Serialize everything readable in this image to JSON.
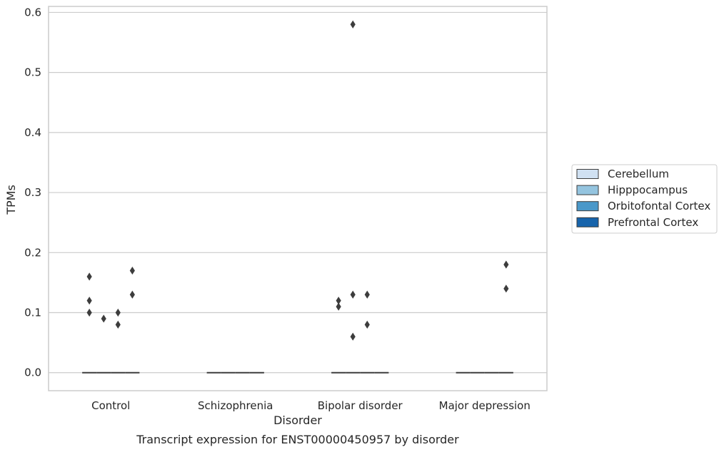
{
  "chart_data": {
    "type": "box",
    "xlabel": "Disorder",
    "ylabel": "TPMs",
    "caption": "Transcript expression for ENST00000450957 by disorder",
    "categories": [
      "Control",
      "Schizophrenia",
      "Bipolar disorder",
      "Major depression"
    ],
    "ylim": [
      -0.03,
      0.61
    ],
    "yticks": [
      "0.0",
      "0.1",
      "0.2",
      "0.3",
      "0.4",
      "0.5",
      "0.6"
    ],
    "grid": "horizontal",
    "legend_position": "right",
    "series": [
      {
        "name": "Cerebellum",
        "color": "#d0e1f2",
        "median": [
          0,
          0,
          0,
          0
        ],
        "outliers": [
          [
            0.1,
            0.12,
            0.16
          ],
          [],
          [
            0.11,
            0.12
          ],
          []
        ]
      },
      {
        "name": "Hipppocampus",
        "color": "#94c4df",
        "median": [
          0,
          0,
          0,
          0
        ],
        "outliers": [
          [
            0.09
          ],
          [],
          [
            0.06,
            0.13,
            0.58
          ],
          []
        ]
      },
      {
        "name": "Orbitofontal Cortex",
        "color": "#4a98c9",
        "median": [
          0,
          0,
          0,
          0
        ],
        "outliers": [
          [
            0.08,
            0.1
          ],
          [],
          [
            0.08,
            0.13
          ],
          []
        ]
      },
      {
        "name": "Prefrontal Cortex",
        "color": "#1764ab",
        "median": [
          0,
          0,
          0,
          0
        ],
        "outliers": [
          [
            0.13,
            0.17
          ],
          [],
          [],
          [
            0.14,
            0.18
          ]
        ]
      }
    ]
  }
}
